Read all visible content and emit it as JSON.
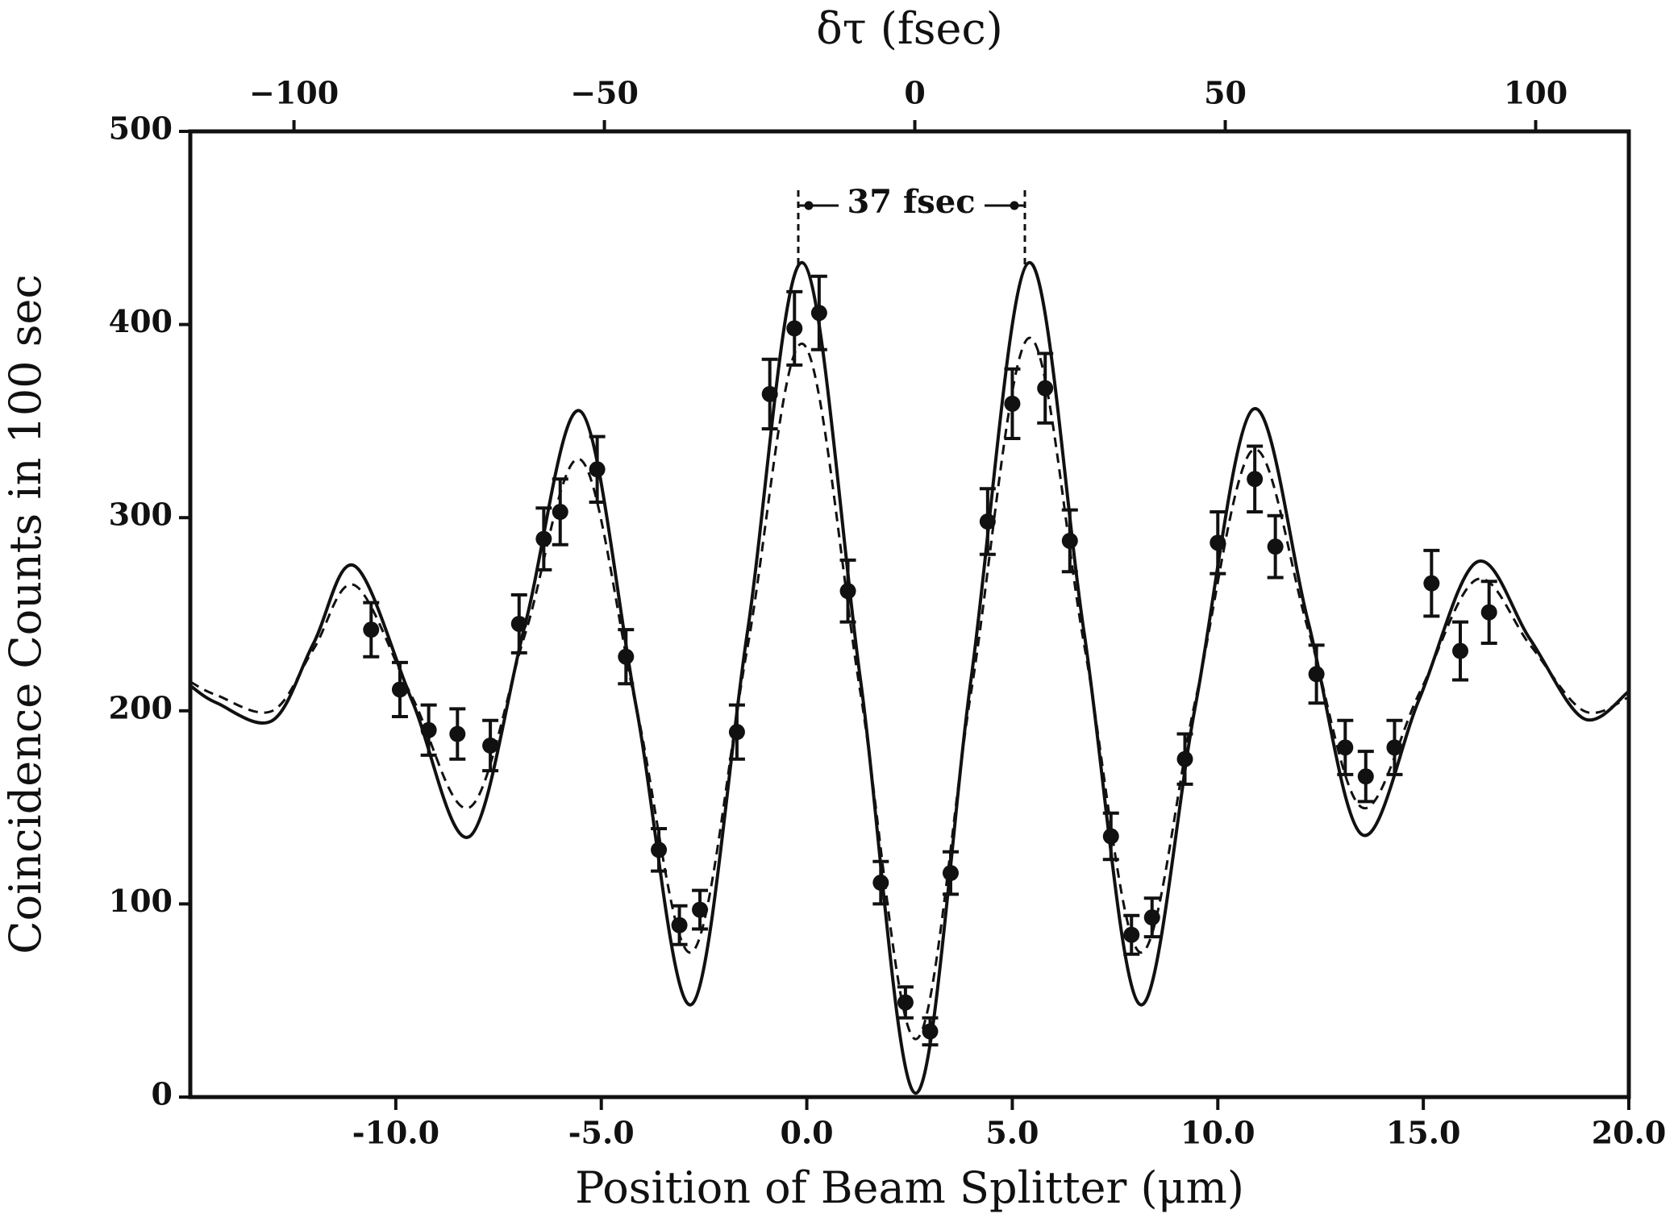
{
  "chart_data": {
    "type": "scatter",
    "title": "δτ (fsec)",
    "xlabel": "Position of Beam Splitter (μm)",
    "ylabel": "Coincidence Counts in 100 sec",
    "annotation": "37 fsec",
    "color": "#111111",
    "xlim": [
      -15,
      20
    ],
    "xticks": [
      {
        "value": -10,
        "label": "-10.0"
      },
      {
        "value": -5,
        "label": "-5.0"
      },
      {
        "value": 0,
        "label": "0.0"
      },
      {
        "value": 5,
        "label": "5.0"
      },
      {
        "value": 10,
        "label": "10.0"
      },
      {
        "value": 15,
        "label": "15.0"
      },
      {
        "value": 20,
        "label": "20.0"
      }
    ],
    "x2lim": [
      -116.7,
      115
    ],
    "x2ticks": [
      {
        "value": -100,
        "label": "−100"
      },
      {
        "value": -50,
        "label": "−50"
      },
      0,
      50,
      100
    ],
    "ylim": [
      0,
      500
    ],
    "yticks": [
      0,
      100,
      200,
      300,
      400,
      500
    ],
    "points": {
      "x": [
        -10.6,
        -9.9,
        -9.2,
        -8.5,
        -7.7,
        -7.0,
        -6.4,
        -6.0,
        -5.1,
        -4.4,
        -3.6,
        -3.1,
        -2.6,
        -1.7,
        -0.9,
        -0.3,
        0.3,
        1.0,
        1.8,
        2.4,
        3.0,
        3.5,
        4.4,
        5.0,
        5.8,
        6.4,
        7.4,
        7.9,
        8.4,
        9.2,
        10.0,
        10.9,
        11.4,
        12.4,
        13.1,
        13.6,
        14.3,
        15.2,
        15.9,
        16.6
      ],
      "y": [
        242,
        211,
        190,
        188,
        182,
        245,
        289,
        303,
        325,
        228,
        128,
        89,
        97,
        189,
        364,
        398,
        406,
        262,
        111,
        49,
        34,
        116,
        298,
        359,
        367,
        288,
        135,
        84,
        93,
        175,
        287,
        320,
        285,
        219,
        181,
        166,
        181,
        266,
        231,
        251
      ],
      "errors": [
        14,
        14,
        13,
        13,
        13,
        15,
        16,
        17,
        17,
        14,
        11,
        10,
        10,
        14,
        18,
        19,
        19,
        16,
        11,
        8,
        7,
        11,
        17,
        18,
        18,
        16,
        12,
        10,
        10,
        13,
        16,
        17,
        16,
        15,
        14,
        13,
        14,
        17,
        15,
        16
      ]
    },
    "curves": [
      {
        "style": "solid",
        "x": [
          -15,
          -14.35,
          -13,
          -12,
          -11,
          -9.6,
          -8.2,
          -6.85,
          -5.5,
          -4.15,
          -2.8,
          -1.45,
          -0.1,
          1.3,
          2.65,
          4.0,
          5.4,
          6.75,
          8.1,
          9.45,
          10.85,
          12.2,
          13.5,
          14.9,
          16.3,
          17.6,
          18.9,
          20
        ],
        "values": [
          213,
          204,
          195,
          235,
          275,
          205,
          135,
          245,
          355,
          202,
          48,
          240,
          432,
          217,
          2,
          217,
          432,
          240,
          48,
          202,
          356,
          246,
          136,
          206,
          277,
          237,
          196,
          210
        ]
      },
      {
        "style": "dashed",
        "x": [
          -15,
          -14.35,
          -13,
          -12,
          -11,
          -9.6,
          -8.2,
          -6.85,
          -5.5,
          -4.15,
          -2.8,
          -1.45,
          -0.1,
          1.3,
          2.65,
          4.0,
          5.4,
          6.75,
          8.1,
          9.45,
          10.85,
          12.2,
          13.5,
          14.9,
          16.3,
          17.6,
          18.9,
          20
        ],
        "values": [
          215,
          208,
          200,
          232,
          265,
          207,
          150,
          240,
          330,
          202,
          75,
          232,
          390,
          210,
          30,
          210,
          393,
          234,
          75,
          205,
          335,
          242,
          150,
          209,
          268,
          234,
          200,
          207
        ]
      }
    ]
  }
}
